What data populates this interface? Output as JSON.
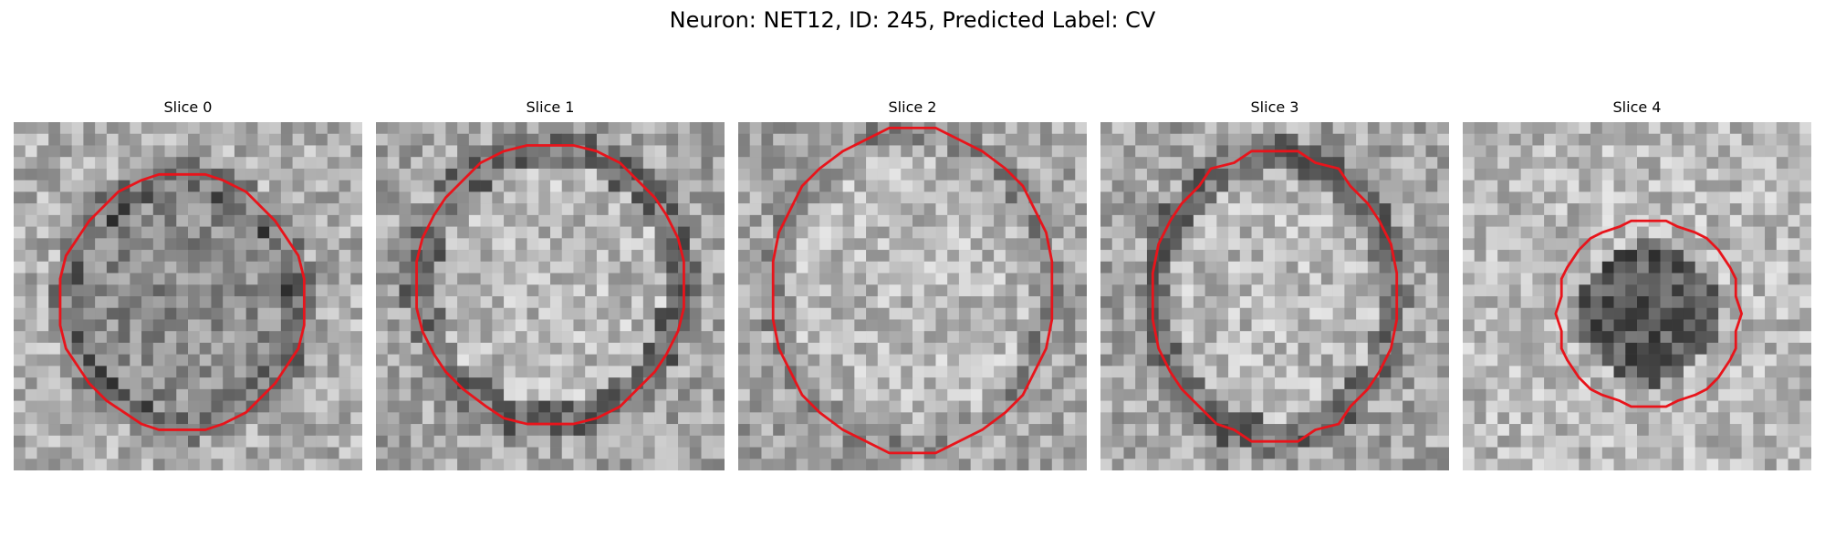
{
  "figure": {
    "title": "Neuron: NET12, ID: 245, Predicted Label: CV",
    "outline_color": "#e8141b",
    "colormap": "grayscale",
    "panels": [
      {
        "title": "Slice 0",
        "seed": 11,
        "center_tone": "dark",
        "ring": "dark"
      },
      {
        "title": "Slice 1",
        "seed": 23,
        "center_tone": "light",
        "ring": "dark"
      },
      {
        "title": "Slice 2",
        "seed": 37,
        "center_tone": "light",
        "ring": "mid"
      },
      {
        "title": "Slice 3",
        "seed": 41,
        "center_tone": "light",
        "ring": "dark"
      },
      {
        "title": "Slice 4",
        "seed": 53,
        "center_tone": "dark-blob",
        "ring": "light"
      }
    ]
  }
}
